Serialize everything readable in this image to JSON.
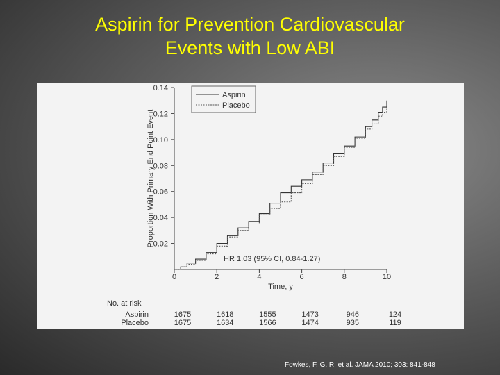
{
  "slide": {
    "title_line1": "Aspirin for Prevention Cardiovascular",
    "title_line2": "Events with Low ABI",
    "citation": "Fowkes, F. G. R. et al. JAMA 2010; 303: 841-848",
    "title_color": "#ffff00"
  },
  "chart_data": {
    "type": "line",
    "title": "",
    "xlabel": "Time, y",
    "ylabel": "Proportion With Primary End Point Event",
    "xlim": [
      0,
      10
    ],
    "ylim": [
      0,
      0.14
    ],
    "x_ticks": [
      0,
      2,
      4,
      6,
      8,
      10
    ],
    "x_tick_labels": [
      "0",
      "2",
      "4",
      "6",
      "8",
      "10"
    ],
    "y_ticks": [
      0.02,
      0.04,
      0.06,
      0.08,
      0.1,
      0.12,
      0.14
    ],
    "y_tick_labels": [
      "0.02",
      "0.04",
      "0.06",
      "0.08",
      "0.10",
      "0.12",
      "0.14"
    ],
    "legend_position": "top-right",
    "annotation": "HR 1.03 (95% CI, 0.84-1.27)",
    "series": [
      {
        "name": "Aspirin",
        "style": "solid",
        "color": "#333333",
        "points": [
          [
            0,
            0
          ],
          [
            0.3,
            0.002
          ],
          [
            0.6,
            0.005
          ],
          [
            1,
            0.008
          ],
          [
            1.5,
            0.013
          ],
          [
            2,
            0.02
          ],
          [
            2.5,
            0.026
          ],
          [
            3,
            0.032
          ],
          [
            3.5,
            0.037
          ],
          [
            4,
            0.043
          ],
          [
            4.5,
            0.051
          ],
          [
            5,
            0.059
          ],
          [
            5.5,
            0.064
          ],
          [
            6,
            0.069
          ],
          [
            6.5,
            0.075
          ],
          [
            7,
            0.082
          ],
          [
            7.5,
            0.089
          ],
          [
            8,
            0.095
          ],
          [
            8.5,
            0.102
          ],
          [
            9,
            0.11
          ],
          [
            9.3,
            0.115
          ],
          [
            9.6,
            0.121
          ],
          [
            9.8,
            0.125
          ],
          [
            10,
            0.13
          ]
        ]
      },
      {
        "name": "Placebo",
        "style": "dotted",
        "color": "#555555",
        "points": [
          [
            0,
            0
          ],
          [
            0.3,
            0.002
          ],
          [
            0.6,
            0.004
          ],
          [
            1,
            0.007
          ],
          [
            1.5,
            0.012
          ],
          [
            2,
            0.018
          ],
          [
            2.5,
            0.025
          ],
          [
            3,
            0.03
          ],
          [
            3.5,
            0.035
          ],
          [
            4,
            0.042
          ],
          [
            4.5,
            0.047
          ],
          [
            5,
            0.052
          ],
          [
            5.5,
            0.059
          ],
          [
            6,
            0.066
          ],
          [
            6.5,
            0.073
          ],
          [
            7,
            0.08
          ],
          [
            7.5,
            0.087
          ],
          [
            8,
            0.094
          ],
          [
            8.5,
            0.101
          ],
          [
            9,
            0.108
          ],
          [
            9.3,
            0.112
          ],
          [
            9.6,
            0.118
          ],
          [
            9.8,
            0.121
          ],
          [
            10,
            0.125
          ]
        ]
      }
    ],
    "at_risk": {
      "header": "No. at risk",
      "rows": [
        {
          "label": "Aspirin",
          "values": [
            "1675",
            "1618",
            "1555",
            "1473",
            "946",
            "124"
          ]
        },
        {
          "label": "Placebo",
          "values": [
            "1675",
            "1634",
            "1566",
            "1474",
            "935",
            "119"
          ]
        }
      ]
    }
  }
}
